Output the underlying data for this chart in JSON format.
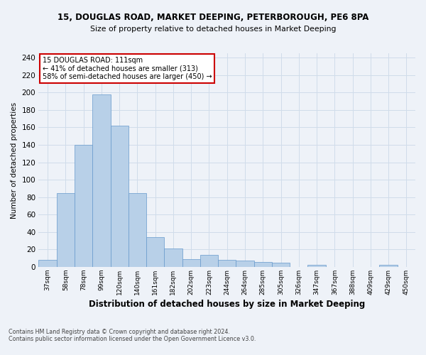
{
  "title1": "15, DOUGLAS ROAD, MARKET DEEPING, PETERBOROUGH, PE6 8PA",
  "title2": "Size of property relative to detached houses in Market Deeping",
  "xlabel": "Distribution of detached houses by size in Market Deeping",
  "ylabel": "Number of detached properties",
  "categories": [
    "37sqm",
    "58sqm",
    "78sqm",
    "99sqm",
    "120sqm",
    "140sqm",
    "161sqm",
    "182sqm",
    "202sqm",
    "223sqm",
    "244sqm",
    "264sqm",
    "285sqm",
    "305sqm",
    "326sqm",
    "347sqm",
    "367sqm",
    "388sqm",
    "409sqm",
    "429sqm",
    "450sqm"
  ],
  "values": [
    8,
    85,
    140,
    198,
    162,
    85,
    34,
    21,
    9,
    14,
    8,
    7,
    6,
    5,
    0,
    2,
    0,
    0,
    0,
    2,
    0
  ],
  "bar_color": "#b8d0e8",
  "bar_edge_color": "#6699cc",
  "annotation_text": "15 DOUGLAS ROAD: 111sqm\n← 41% of detached houses are smaller (313)\n58% of semi-detached houses are larger (450) →",
  "annotation_box_color": "#ffffff",
  "annotation_box_edge": "#cc0000",
  "footnote1": "Contains HM Land Registry data © Crown copyright and database right 2024.",
  "footnote2": "Contains public sector information licensed under the Open Government Licence v3.0.",
  "grid_color": "#d0dcea",
  "bg_color": "#eef2f8",
  "ylim": [
    0,
    245
  ],
  "yticks": [
    0,
    20,
    40,
    60,
    80,
    100,
    120,
    140,
    160,
    180,
    200,
    220,
    240
  ]
}
